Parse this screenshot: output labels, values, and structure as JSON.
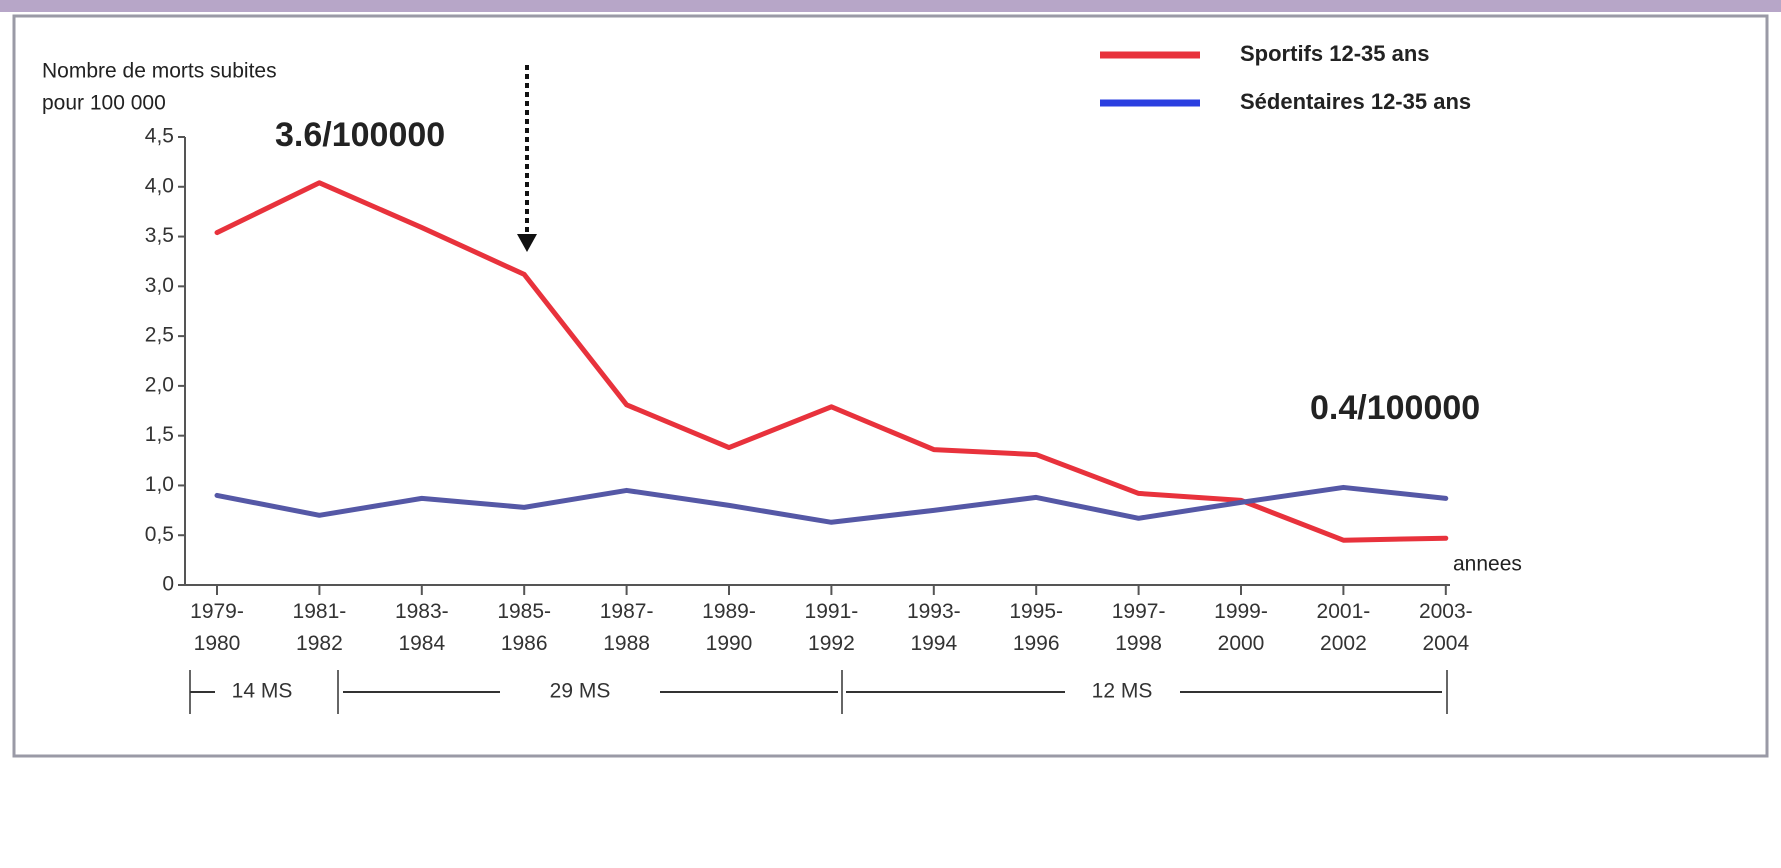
{
  "chart_data": {
    "type": "line",
    "ylabel": [
      "Nombre de morts subites",
      "pour 100 000"
    ],
    "xlabel": "annees",
    "categories": [
      "1979-1980",
      "1981-1982",
      "1983-1984",
      "1985-1986",
      "1987-1988",
      "1989-1990",
      "1991-1992",
      "1993-1994",
      "1995-1996",
      "1997-1998",
      "1999-2000",
      "2001-2002",
      "2003-2004"
    ],
    "series": [
      {
        "name": "Sportifs 12-35 ans",
        "color": "#e8323c",
        "legend_color": "#e8323c",
        "values": [
          3.54,
          4.04,
          3.59,
          3.12,
          1.81,
          1.38,
          1.79,
          1.36,
          1.31,
          0.92,
          0.85,
          0.45,
          0.47
        ]
      },
      {
        "name": "Sédentaires 12-35 ans",
        "color": "#5558a6",
        "legend_color": "#2a3fe0",
        "values": [
          0.9,
          0.7,
          0.87,
          0.78,
          0.95,
          0.8,
          0.63,
          0.75,
          0.88,
          0.67,
          0.83,
          0.98,
          0.87
        ]
      }
    ],
    "ylim": [
      0,
      4.5
    ],
    "yticks": [
      0,
      {
        "value": 0.5,
        "label": "0,5"
      },
      {
        "value": 1,
        "label": "1,0"
      },
      {
        "value": 1.5,
        "label": "1,5"
      },
      {
        "value": 2,
        "label": "2,0"
      },
      {
        "value": 2.5,
        "label": "2,5"
      },
      {
        "value": 3,
        "label": "3,0"
      },
      {
        "value": 3.5,
        "label": "3,5"
      },
      {
        "value": 4,
        "label": "4,0"
      },
      {
        "value": 4.5,
        "label": "4,5"
      }
    ],
    "annotations": [
      "3.6/100000",
      "0.4/100000"
    ],
    "periods": [
      "14 MS",
      "29 MS",
      "12 MS"
    ],
    "legend": "upper right"
  }
}
